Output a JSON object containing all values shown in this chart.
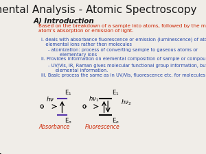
{
  "title": "Elemental Analysis - Atomic Spectroscopy",
  "background_color": "#f0ede8",
  "title_color": "#1a1a1a",
  "title_fontsize": 11,
  "section_label": "A) Introduction",
  "section_color": "#1a1a1a",
  "section_fontsize": 7.5,
  "red_text": "Based on the breakdown of a sample into atoms, followed by the measurement of the\natom’s absorption or emission of light.",
  "red_color": "#cc2200",
  "blue_color": "#2244aa",
  "blue_items": [
    "i. deals with absorbance fluorescence or emission (luminescence) of atoms or\n    elemental ions rather then molecules",
    "    - atomization: process of converting sample to gaseous atoms or\n           elementary ions",
    "ii. Provides information on elemental composition of sample or compound",
    "    - UV/Vis, IR, Raman gives molecular functional group information, but no\n         elemental information.",
    "iii. Basic process the same as in UV/Vis, fluorescence etc. for molecules"
  ],
  "abs_label": "Absorbance",
  "fl_label": "Fluorescence",
  "label_color": "#cc2200"
}
